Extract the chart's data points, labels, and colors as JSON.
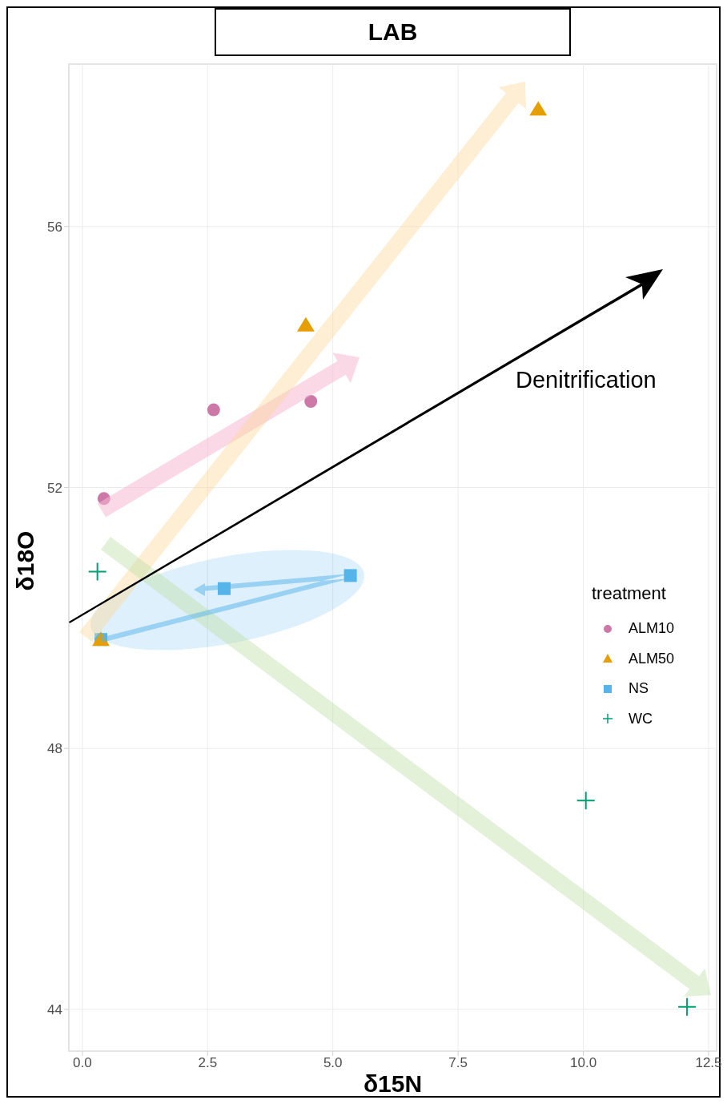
{
  "chart_data": {
    "type": "scatter",
    "title": "LAB",
    "xlabel": "δ15N",
    "ylabel": "δ18O",
    "legend_title": "treatment",
    "legend": "right",
    "grid": true,
    "xlim": [
      -0.27,
      12.66
    ],
    "ylim": [
      43.36,
      58.49
    ],
    "xticks": [
      {
        "value": 0,
        "label": "0.0"
      },
      {
        "value": 2.5,
        "label": "2.5"
      },
      {
        "value": 5,
        "label": "5.0"
      },
      {
        "value": 7.5,
        "label": "7.5"
      },
      {
        "value": 10,
        "label": "10.0"
      },
      {
        "value": 12.5,
        "label": "12.5"
      }
    ],
    "yticks": [
      44,
      48,
      52,
      56
    ],
    "annotations": [
      "Denitrification"
    ],
    "series": [
      {
        "name": "ALM10",
        "color": "#cc79a7",
        "marker": "circle",
        "x": [
          0.43,
          2.62,
          4.56
        ],
        "values": [
          51.83,
          53.19,
          53.32
        ]
      },
      {
        "name": "ALM50",
        "color": "#e69f00",
        "marker": "triangle",
        "x": [
          0.37,
          4.46,
          9.1
        ],
        "values": [
          49.67,
          54.49,
          57.8
        ]
      },
      {
        "name": "NS",
        "color": "#56b4e9",
        "marker": "square",
        "x": [
          0.37,
          2.83,
          5.35
        ],
        "values": [
          49.67,
          50.45,
          50.65
        ]
      },
      {
        "name": "WC",
        "color": "#009e73",
        "marker": "cross",
        "x": [
          0.3,
          10.05,
          12.07
        ],
        "values": [
          50.71,
          47.2,
          44.04
        ]
      }
    ]
  }
}
